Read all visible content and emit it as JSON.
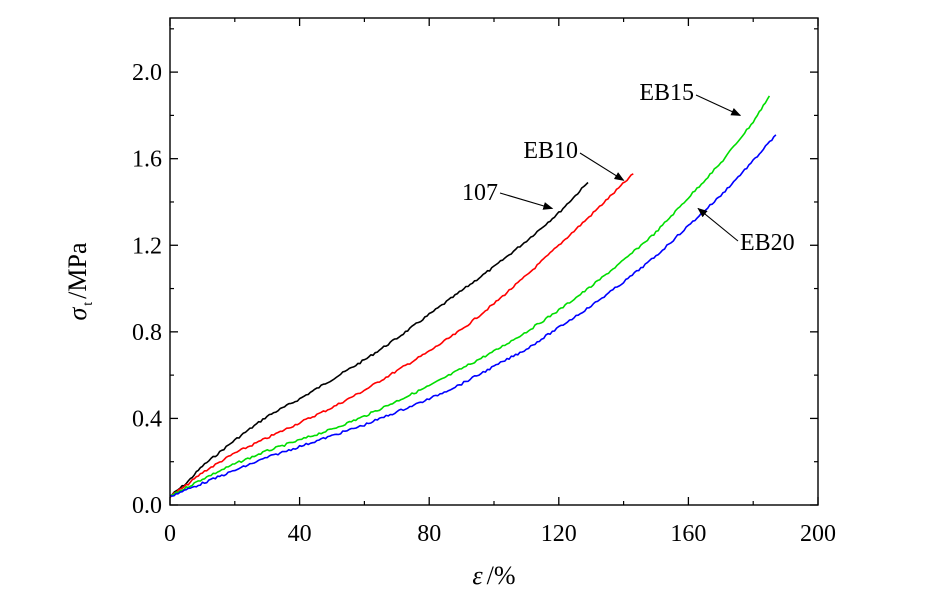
{
  "chart_data": {
    "type": "line",
    "xlabel": {
      "symbol": "ε",
      "unit": "/%"
    },
    "ylabel": {
      "symbol": "σ",
      "subscript": "t",
      "unit": "/MPa"
    },
    "xlim": [
      0,
      200
    ],
    "ylim": [
      0,
      2.25
    ],
    "x_ticks": [
      "0",
      "40",
      "80",
      "120",
      "160",
      "200"
    ],
    "y_ticks": [
      "0.0",
      "0.4",
      "0.8",
      "1.2",
      "1.6",
      "2.0"
    ],
    "grid": false,
    "legend": "inline labels with arrows",
    "series": [
      {
        "name": "107",
        "color": "#000000",
        "x": [
          0,
          5,
          10,
          20,
          30,
          40,
          50,
          60,
          70,
          80,
          90,
          100,
          110,
          120,
          129
        ],
        "y": [
          0.04,
          0.1,
          0.18,
          0.3,
          0.41,
          0.49,
          0.58,
          0.67,
          0.77,
          0.88,
          0.99,
          1.1,
          1.22,
          1.35,
          1.49
        ]
      },
      {
        "name": "EB10",
        "color": "#ff0000",
        "x": [
          0,
          5,
          10,
          20,
          30,
          40,
          50,
          60,
          70,
          80,
          90,
          100,
          110,
          120,
          130,
          143
        ],
        "y": [
          0.04,
          0.09,
          0.15,
          0.24,
          0.31,
          0.38,
          0.45,
          0.53,
          0.62,
          0.71,
          0.81,
          0.93,
          1.06,
          1.2,
          1.34,
          1.53
        ]
      },
      {
        "name": "EB15",
        "color": "#00dd00",
        "x": [
          0,
          5,
          10,
          20,
          30,
          40,
          50,
          60,
          70,
          80,
          90,
          100,
          110,
          120,
          130,
          140,
          150,
          160,
          170,
          180,
          185
        ],
        "y": [
          0.04,
          0.08,
          0.12,
          0.19,
          0.25,
          0.3,
          0.35,
          0.41,
          0.48,
          0.55,
          0.63,
          0.71,
          0.8,
          0.9,
          1.01,
          1.13,
          1.26,
          1.42,
          1.58,
          1.77,
          1.89
        ]
      },
      {
        "name": "EB20",
        "color": "#0000ff",
        "x": [
          0,
          5,
          10,
          20,
          30,
          40,
          50,
          60,
          70,
          80,
          90,
          100,
          110,
          120,
          130,
          140,
          150,
          160,
          170,
          180,
          187
        ],
        "y": [
          0.04,
          0.07,
          0.1,
          0.16,
          0.22,
          0.27,
          0.32,
          0.37,
          0.43,
          0.49,
          0.56,
          0.64,
          0.72,
          0.82,
          0.92,
          1.03,
          1.15,
          1.29,
          1.43,
          1.59,
          1.71
        ]
      }
    ],
    "annotations": [
      {
        "text": "107",
        "series": "107",
        "arrow_to": [
          118,
          1.37
        ]
      },
      {
        "text": "EB10",
        "series": "EB10",
        "arrow_to": [
          140,
          1.5
        ]
      },
      {
        "text": "EB15",
        "series": "EB15",
        "arrow_to": [
          176,
          1.8
        ]
      },
      {
        "text": "EB20",
        "series": "EB20",
        "arrow_to": [
          163,
          1.37
        ]
      }
    ]
  }
}
